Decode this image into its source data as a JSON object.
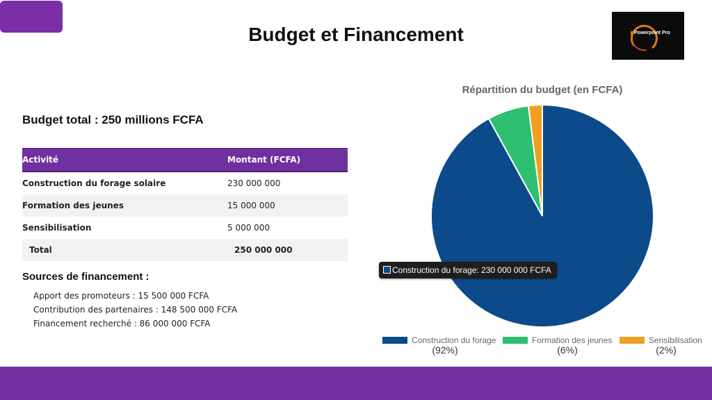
{
  "slide": {
    "title": "Budget et Financement",
    "logo_text": "Powerpoint Pro"
  },
  "budget": {
    "total_label": "Budget total : 250 millions FCFA",
    "headers": [
      "Activité",
      "Montant (FCFA)"
    ],
    "rows": [
      {
        "activity": "Construction du forage solaire",
        "amount": "230 000 000"
      },
      {
        "activity": "Formation des jeunes",
        "amount": "15 000 000"
      },
      {
        "activity": "Sensibilisation",
        "amount": "5 000 000"
      },
      {
        "activity": "Total",
        "amount": "250 000 000"
      }
    ]
  },
  "sources": {
    "heading": "Sources de financement :",
    "items": [
      "Apport des promoteurs : 15 500 000 FCFA",
      "Contribution des partenaires : 148 500 000 FCFA",
      "Financement recherché : 86 000 000 FCFA"
    ]
  },
  "tooltip": {
    "text": "Construction du forage: 230 000 000 FCFA"
  },
  "chart_data": {
    "type": "pie",
    "title": "Répartition du budget (en FCFA)",
    "categories": [
      "Construction du forage",
      "Formation des jeunes",
      "Sensibilisation"
    ],
    "values": [
      230000000,
      15000000,
      5000000
    ],
    "percent_labels": [
      "(92%)",
      "(6%)",
      "(2%)"
    ],
    "colors": [
      "#0c4a8a",
      "#2ebf70",
      "#f0a020"
    ],
    "legend_position": "bottom"
  },
  "colors": {
    "accent": "#7030a0",
    "header_bg": "#7030a0"
  }
}
